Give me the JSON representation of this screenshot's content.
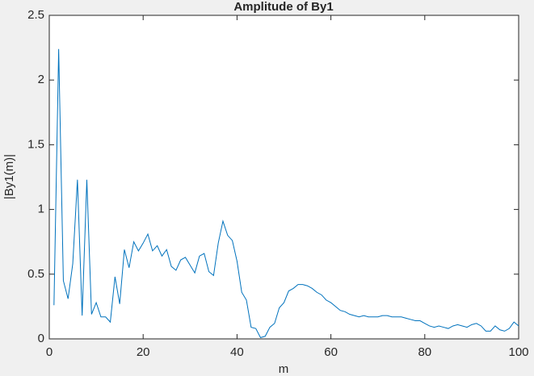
{
  "chart_data": {
    "type": "line",
    "title": "Amplitude of By1",
    "x_label": "m",
    "y_label": "|By1(m)|",
    "x": [
      1,
      2,
      3,
      4,
      5,
      6,
      7,
      8,
      9,
      10,
      11,
      12,
      13,
      14,
      15,
      16,
      17,
      18,
      19,
      20,
      21,
      22,
      23,
      24,
      25,
      26,
      27,
      28,
      29,
      30,
      31,
      32,
      33,
      34,
      35,
      36,
      37,
      38,
      39,
      40,
      41,
      42,
      43,
      44,
      45,
      46,
      47,
      48,
      49,
      50,
      51,
      52,
      53,
      54,
      55,
      56,
      57,
      58,
      59,
      60,
      61,
      62,
      63,
      64,
      65,
      66,
      67,
      68,
      69,
      70,
      71,
      72,
      73,
      74,
      75,
      76,
      77,
      78,
      79,
      80,
      81,
      82,
      83,
      84,
      85,
      86,
      87,
      88,
      89,
      90,
      91,
      92,
      93,
      94,
      95,
      96,
      97,
      98,
      99,
      100
    ],
    "series": [
      {
        "color": "#0072bd",
        "values": [
          0.26,
          2.24,
          0.45,
          0.31,
          0.58,
          1.23,
          0.18,
          1.23,
          0.19,
          0.28,
          0.17,
          0.17,
          0.13,
          0.48,
          0.27,
          0.69,
          0.55,
          0.75,
          0.68,
          0.74,
          0.81,
          0.68,
          0.72,
          0.64,
          0.69,
          0.56,
          0.53,
          0.61,
          0.63,
          0.57,
          0.51,
          0.64,
          0.66,
          0.52,
          0.49,
          0.74,
          0.91,
          0.8,
          0.76,
          0.6,
          0.36,
          0.3,
          0.09,
          0.08,
          0.01,
          0.02,
          0.09,
          0.12,
          0.24,
          0.28,
          0.37,
          0.39,
          0.42,
          0.42,
          0.41,
          0.39,
          0.36,
          0.34,
          0.3,
          0.28,
          0.25,
          0.22,
          0.21,
          0.19,
          0.18,
          0.17,
          0.18,
          0.17,
          0.17,
          0.17,
          0.18,
          0.18,
          0.17,
          0.17,
          0.17,
          0.16,
          0.15,
          0.14,
          0.14,
          0.12,
          0.1,
          0.09,
          0.1,
          0.09,
          0.08,
          0.1,
          0.11,
          0.1,
          0.09,
          0.11,
          0.12,
          0.1,
          0.06,
          0.06,
          0.1,
          0.07,
          0.06,
          0.08,
          0.13,
          0.1
        ]
      }
    ],
    "xlim": [
      0,
      100
    ],
    "xticks": [
      0,
      20,
      40,
      60,
      80,
      100
    ],
    "ylim": [
      0,
      2.5
    ],
    "yticks": [
      0,
      0.5,
      1,
      1.5,
      2,
      2.5
    ],
    "grid": false
  }
}
